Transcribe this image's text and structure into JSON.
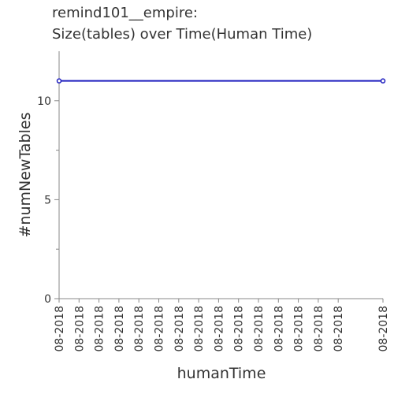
{
  "chart_data": {
    "type": "line",
    "title": [
      "remind101__empire:",
      "Size(tables) over Time(Human Time)"
    ],
    "xlabel": "humanTime",
    "ylabel": "#numNewTables",
    "ylim": [
      0,
      12.5
    ],
    "y_ticks": [
      0,
      5,
      10
    ],
    "x_tick_labels": [
      "08-2018",
      "08-2018",
      "08-2018",
      "08-2018",
      "08-2018",
      "08-2018",
      "08-2018",
      "08-2018",
      "08-2018",
      "08-2018",
      "08-2018",
      "08-2018",
      "08-2018",
      "08-2018",
      "08-2018",
      "08-2018"
    ],
    "series_color": "#1f1fbf",
    "series": [
      {
        "values": [
          {
            "x": 0,
            "y": 11
          },
          {
            "x": 1,
            "y": 11
          }
        ]
      }
    ],
    "grid": false,
    "legend": "none"
  }
}
